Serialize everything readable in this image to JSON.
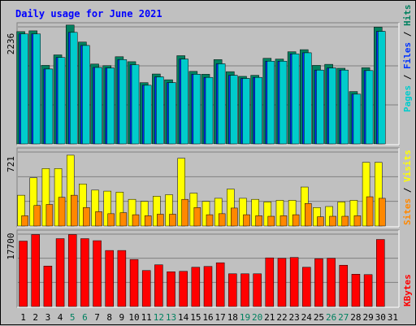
{
  "chart_data": {
    "type": "bar",
    "title": "Daily usage for June 2021",
    "categories": [
      "1",
      "2",
      "3",
      "4",
      "5",
      "6",
      "7",
      "8",
      "9",
      "10",
      "11",
      "12",
      "13",
      "14",
      "15",
      "16",
      "17",
      "18",
      "19",
      "20",
      "21",
      "22",
      "23",
      "24",
      "25",
      "26",
      "27",
      "28",
      "29",
      "30",
      "31"
    ],
    "weekend_days": [
      "5",
      "6",
      "12",
      "13",
      "19",
      "20",
      "26",
      "27"
    ],
    "panels": [
      {
        "id": "top",
        "ymax": 2236,
        "ymax_label": "2236",
        "series": [
          {
            "name": "Pages",
            "color": "#00cccc",
            "values": [
              null,
              null,
              null,
              null,
              null,
              null,
              null,
              null,
              null,
              null,
              null,
              null,
              null,
              null,
              null,
              null,
              null,
              null,
              null,
              null,
              null,
              null,
              null,
              null,
              null,
              null,
              null,
              null,
              null,
              null,
              null
            ]
          },
          {
            "name": "Files",
            "color": "#0033ff",
            "values": [
              null,
              null,
              null,
              null,
              null,
              null,
              null,
              null,
              null,
              null,
              null,
              null,
              null,
              null,
              null,
              null,
              null,
              null,
              null,
              null,
              null,
              null,
              null,
              null,
              null,
              null,
              null,
              null,
              null,
              null,
              null
            ]
          },
          {
            "name": "Hits",
            "color": "#00cccc",
            "values": [
              2145,
              2160,
              1500,
              1700,
              2270,
              1945,
              1525,
              1495,
              1665,
              1570,
              1170,
              1335,
              1225,
              1685,
              1385,
              1330,
              1610,
              1380,
              1290,
              1310,
              1635,
              1620,
              1760,
              1800,
              1500,
              1520,
              1445,
              1000,
              1455,
              2230,
              null
            ]
          }
        ],
        "pages_values": [
          2100,
          2100,
          1430,
          1650,
          2130,
          1880,
          1460,
          1450,
          1610,
          1510,
          1120,
          1280,
          1170,
          1620,
          1330,
          1270,
          1530,
          1310,
          1250,
          1270,
          1580,
          1580,
          1720,
          1740,
          1410,
          1450,
          1410,
          950,
          1400,
          2150,
          null
        ],
        "files_values": [
          2100,
          2100,
          1430,
          1650,
          2130,
          1880,
          1460,
          1450,
          1610,
          1510,
          1120,
          1280,
          1170,
          1620,
          1330,
          1270,
          1530,
          1310,
          1250,
          1270,
          1580,
          1580,
          1720,
          1740,
          1410,
          1450,
          1410,
          950,
          1400,
          2150,
          null
        ],
        "legend": [
          "Pages",
          "Files",
          "Hits"
        ]
      },
      {
        "id": "middle",
        "ymax": 721,
        "ymax_label": "721",
        "series": [
          {
            "name": "Visits",
            "color": "#ffff00",
            "values": [
              300,
              470,
              560,
              560,
              690,
              410,
              350,
              340,
              330,
              260,
              240,
              290,
              305,
              660,
              320,
              240,
              270,
              360,
              270,
              260,
              235,
              250,
              250,
              380,
              180,
              190,
              235,
              250,
              620,
              620,
              null
            ]
          },
          {
            "name": "Sites",
            "color": "#ff8800",
            "values": [
              100,
              200,
              210,
              280,
              300,
              180,
              140,
              120,
              130,
              110,
              100,
              115,
              115,
              260,
              180,
              110,
              120,
              175,
              110,
              100,
              95,
              100,
              110,
              220,
              90,
              95,
              95,
              100,
              285,
              270,
              null
            ]
          }
        ],
        "legend": [
          "Sites",
          "Visits"
        ]
      },
      {
        "id": "bottom",
        "ymax": 17700,
        "ymax_label": "17700",
        "series": [
          {
            "name": "KBytes",
            "color": "#ff0000",
            "values": [
              16000,
              17600,
              9900,
              16600,
              17600,
              16600,
              16100,
              13700,
              13700,
              11500,
              8800,
              10200,
              8500,
              8600,
              9600,
              9800,
              10700,
              8000,
              8000,
              8000,
              11900,
              11800,
              12000,
              9600,
              11700,
              11800,
              10100,
              7900,
              7800,
              16400,
              null
            ]
          }
        ],
        "legend": [
          "KBytes"
        ]
      }
    ],
    "colors": {
      "background": "#c0c0c0",
      "plot_bg": "#c0c0c0",
      "title": "#0000ff",
      "weekday_label": "#000000",
      "weekend_label": "#00805f",
      "pages": "#00cccc",
      "files": "#0033ff",
      "hits": "#00805f",
      "sites": "#ff8800",
      "visits": "#ffff00",
      "kbytes": "#ff0000"
    }
  }
}
